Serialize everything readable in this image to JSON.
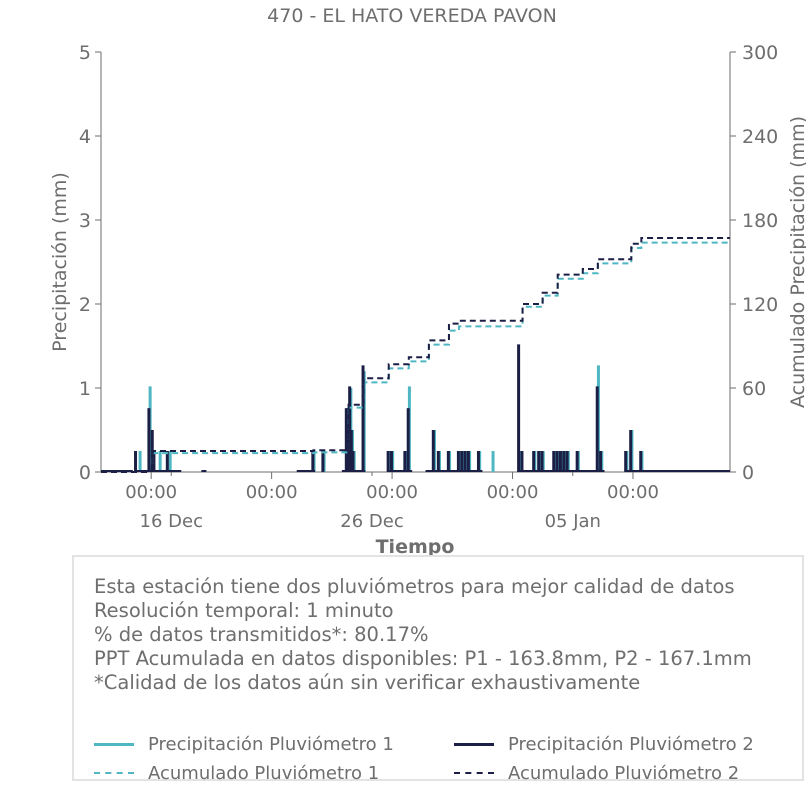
{
  "chart_data": {
    "type": "line",
    "title": "470 - EL HATO VEREDA PAVON",
    "xlabel": "Tiempo",
    "ylabel_left": "Precipitación (mm)",
    "ylabel_right": "Acumulado Precipitación (mm)",
    "xlim": [
      "2022-12-12T12:00",
      "2023-01-12T20:00"
    ],
    "ylim_left": [
      0,
      5
    ],
    "ylim_right": [
      0,
      300
    ],
    "yticks_left": [
      0,
      1,
      2,
      3,
      4,
      5
    ],
    "yticks_right": [
      0,
      60,
      120,
      180,
      240,
      300
    ],
    "xticks": [
      {
        "x": "2022-12-15T00:00",
        "label": "00:00"
      },
      {
        "x": "2022-12-21T00:00",
        "label": "00:00"
      },
      {
        "x": "2022-12-27T00:00",
        "label": "00:00"
      },
      {
        "x": "2023-01-02T00:00",
        "label": "00:00"
      },
      {
        "x": "2023-01-08T00:00",
        "label": "00:00"
      }
    ],
    "xticks_minor": [
      {
        "x": "2022-12-16T00:00",
        "label": "16 Dec"
      },
      {
        "x": "2022-12-26T00:00",
        "label": "26 Dec"
      },
      {
        "x": "2023-01-05T00:00",
        "label": "05 Jan"
      }
    ],
    "grid": false,
    "colors": {
      "p1": "#4fb6c4",
      "p2": "#1c1f45"
    },
    "series": [
      {
        "name": "Precipitación Pluviómetro 1",
        "axis": "left",
        "style": "bars",
        "points": [
          [
            "2022-12-14T10:00",
            0.25
          ],
          [
            "2022-12-14T22:00",
            1.02
          ],
          [
            "2022-12-15T02:00",
            0.25
          ],
          [
            "2022-12-15T10:00",
            0.25
          ],
          [
            "2022-12-15T22:00",
            0.25
          ],
          [
            "2022-12-23T02:00",
            0.25
          ],
          [
            "2022-12-23T14:00",
            0.25
          ],
          [
            "2022-12-24T18:00",
            0.76
          ],
          [
            "2022-12-24T20:00",
            0.5
          ],
          [
            "2022-12-24T22:00",
            1.0
          ],
          [
            "2022-12-25T00:00",
            0.5
          ],
          [
            "2022-12-25T02:00",
            0.25
          ],
          [
            "2022-12-25T14:00",
            1.2
          ],
          [
            "2022-12-26T20:00",
            0.25
          ],
          [
            "2022-12-27T00:00",
            0.25
          ],
          [
            "2022-12-27T16:00",
            0.25
          ],
          [
            "2022-12-27T20:00",
            1.02
          ],
          [
            "2022-12-29T02:00",
            0.5
          ],
          [
            "2022-12-29T08:00",
            0.25
          ],
          [
            "2022-12-29T20:00",
            0.25
          ],
          [
            "2022-12-30T08:00",
            0.25
          ],
          [
            "2022-12-30T12:00",
            0.25
          ],
          [
            "2022-12-30T16:00",
            0.25
          ],
          [
            "2022-12-30T20:00",
            0.25
          ],
          [
            "2022-12-31T08:00",
            0.25
          ],
          [
            "2023-01-01T00:00",
            0.25
          ],
          [
            "2023-01-02T08:00",
            0.25
          ],
          [
            "2023-01-03T02:00",
            0.25
          ],
          [
            "2023-01-03T08:00",
            0.25
          ],
          [
            "2023-01-03T12:00",
            0.25
          ],
          [
            "2023-01-04T02:00",
            0.25
          ],
          [
            "2023-01-04T06:00",
            0.25
          ],
          [
            "2023-01-04T10:00",
            0.25
          ],
          [
            "2023-01-04T14:00",
            0.25
          ],
          [
            "2023-01-04T18:00",
            0.25
          ],
          [
            "2023-01-05T06:00",
            0.25
          ],
          [
            "2023-01-06T06:00",
            1.27
          ],
          [
            "2023-01-06T10:00",
            0.25
          ],
          [
            "2023-01-07T16:00",
            0.25
          ],
          [
            "2023-01-07T22:00",
            0.5
          ],
          [
            "2023-01-08T10:00",
            0.25
          ]
        ]
      },
      {
        "name": "Precipitación Pluviómetro 2",
        "axis": "left",
        "style": "bars",
        "points": [
          [
            "2022-12-14T06:00",
            0.25
          ],
          [
            "2022-12-14T22:00",
            0.76
          ],
          [
            "2022-12-15T02:00",
            0.5
          ],
          [
            "2022-12-15T04:00",
            0.25
          ],
          [
            "2022-12-15T20:00",
            0.25
          ],
          [
            "2022-12-23T02:00",
            0.25
          ],
          [
            "2022-12-23T14:00",
            0.25
          ],
          [
            "2022-12-24T18:00",
            0.76
          ],
          [
            "2022-12-24T20:00",
            0.5
          ],
          [
            "2022-12-24T22:00",
            1.02
          ],
          [
            "2022-12-25T00:00",
            0.5
          ],
          [
            "2022-12-25T02:00",
            0.25
          ],
          [
            "2022-12-25T14:00",
            1.27
          ],
          [
            "2022-12-26T20:00",
            0.25
          ],
          [
            "2022-12-27T00:00",
            0.25
          ],
          [
            "2022-12-27T16:00",
            0.25
          ],
          [
            "2022-12-27T20:00",
            0.76
          ],
          [
            "2022-12-29T02:00",
            0.5
          ],
          [
            "2022-12-29T08:00",
            0.25
          ],
          [
            "2022-12-29T20:00",
            0.25
          ],
          [
            "2022-12-30T08:00",
            0.25
          ],
          [
            "2022-12-30T12:00",
            0.25
          ],
          [
            "2022-12-30T16:00",
            0.25
          ],
          [
            "2022-12-30T20:00",
            0.25
          ],
          [
            "2022-12-31T08:00",
            0.25
          ],
          [
            "2023-01-02T08:00",
            1.52
          ],
          [
            "2023-01-02T12:00",
            0.25
          ],
          [
            "2023-01-03T02:00",
            0.25
          ],
          [
            "2023-01-03T08:00",
            0.25
          ],
          [
            "2023-01-03T12:00",
            0.25
          ],
          [
            "2023-01-04T02:00",
            0.25
          ],
          [
            "2023-01-04T06:00",
            0.25
          ],
          [
            "2023-01-04T10:00",
            0.25
          ],
          [
            "2023-01-04T14:00",
            0.25
          ],
          [
            "2023-01-04T18:00",
            0.25
          ],
          [
            "2023-01-05T06:00",
            0.25
          ],
          [
            "2023-01-06T06:00",
            1.02
          ],
          [
            "2023-01-06T10:00",
            0.25
          ],
          [
            "2023-01-07T16:00",
            0.25
          ],
          [
            "2023-01-07T22:00",
            0.5
          ],
          [
            "2023-01-08T10:00",
            0.25
          ]
        ]
      },
      {
        "name": "Acumulado Pluviómetro 1",
        "axis": "right",
        "style": "dashed-step",
        "points": [
          [
            "2022-12-12T12:00",
            0
          ],
          [
            "2022-12-14T22:00",
            5
          ],
          [
            "2022-12-15T02:00",
            13.5
          ],
          [
            "2022-12-23T02:00",
            14
          ],
          [
            "2022-12-24T20:00",
            46
          ],
          [
            "2022-12-25T14:00",
            64
          ],
          [
            "2022-12-26T20:00",
            74
          ],
          [
            "2022-12-27T20:00",
            79
          ],
          [
            "2022-12-28T20:00",
            91
          ],
          [
            "2022-12-29T20:00",
            101
          ],
          [
            "2022-12-30T08:00",
            104
          ],
          [
            "2023-01-02T08:00",
            104
          ],
          [
            "2023-01-02T12:00",
            118
          ],
          [
            "2023-01-03T12:00",
            126
          ],
          [
            "2023-01-04T06:00",
            138
          ],
          [
            "2023-01-05T12:00",
            142
          ],
          [
            "2023-01-06T06:00",
            149
          ],
          [
            "2023-01-07T22:00",
            160
          ],
          [
            "2023-01-08T10:00",
            163.8
          ],
          [
            "2023-01-12T20:00",
            163.8
          ]
        ]
      },
      {
        "name": "Acumulado Pluviómetro 2",
        "axis": "right",
        "style": "dashed-step",
        "points": [
          [
            "2022-12-12T12:00",
            0
          ],
          [
            "2022-12-14T22:00",
            5
          ],
          [
            "2022-12-15T02:00",
            15
          ],
          [
            "2022-12-23T02:00",
            15.5
          ],
          [
            "2022-12-24T20:00",
            48
          ],
          [
            "2022-12-25T14:00",
            67
          ],
          [
            "2022-12-26T20:00",
            77
          ],
          [
            "2022-12-27T20:00",
            82
          ],
          [
            "2022-12-28T20:00",
            94
          ],
          [
            "2022-12-29T20:00",
            106
          ],
          [
            "2022-12-30T08:00",
            108
          ],
          [
            "2023-01-02T08:00",
            108
          ],
          [
            "2023-01-02T12:00",
            120
          ],
          [
            "2023-01-03T12:00",
            128
          ],
          [
            "2023-01-04T06:00",
            141
          ],
          [
            "2023-01-05T12:00",
            145
          ],
          [
            "2023-01-06T06:00",
            152
          ],
          [
            "2023-01-07T22:00",
            163
          ],
          [
            "2023-01-08T10:00",
            167.1
          ],
          [
            "2023-01-12T20:00",
            167.1
          ]
        ]
      }
    ]
  },
  "info": {
    "lines": [
      "Esta estación tiene dos pluviómetros para mejor calidad de datos",
      "Resolución temporal: 1 minuto",
      "% de datos transmitidos*: 80.17%",
      "PPT Acumulada en datos disponibles: P1 - 163.8mm, P2 - 167.1mm",
      "*Calidad de los datos aún sin verificar exhaustivamente"
    ]
  },
  "legend": {
    "p1_label": "Precipitación Pluviómetro 1",
    "p2_label": "Precipitación Pluviómetro 2",
    "acc1_label": "Acumulado Pluviómetro 1",
    "acc2_label": "Acumulado Pluviómetro 2"
  }
}
